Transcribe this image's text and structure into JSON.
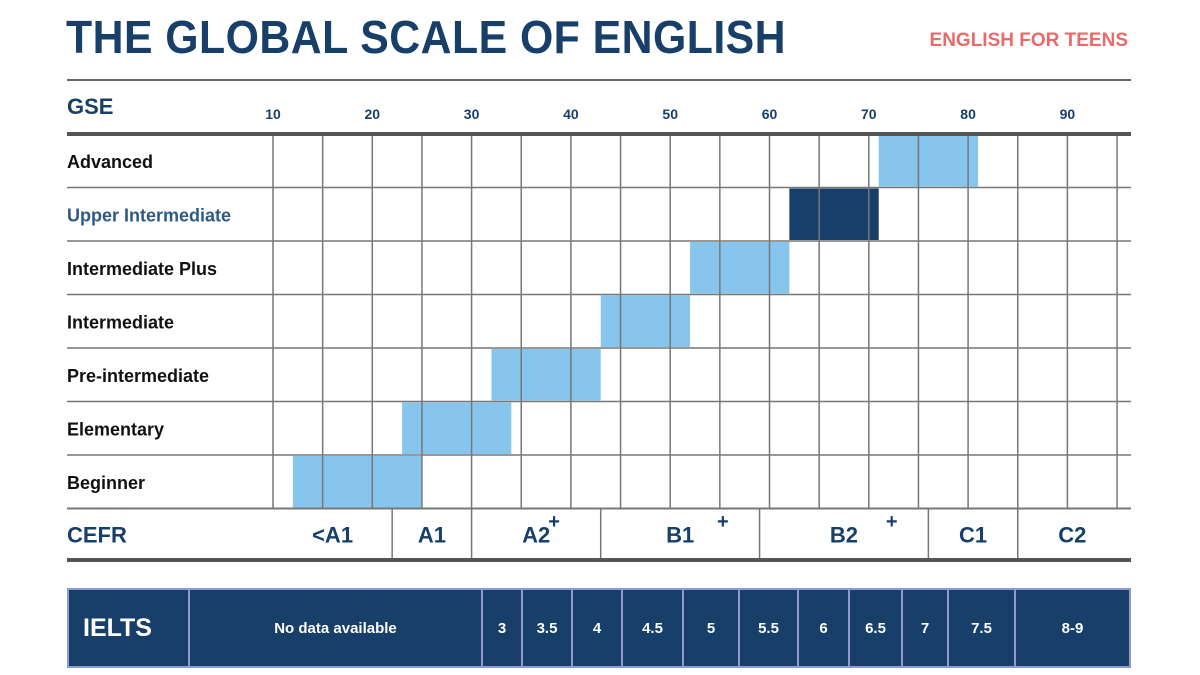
{
  "title": "THE GLOBAL SCALE OF ENGLISH",
  "subtitle": "ENGLISH FOR TEENS",
  "colors": {
    "navy": "#173f69",
    "light_blue": "#88c5ec",
    "accent": "#e96a6a",
    "ielts_border": "#8e9ad8"
  },
  "chart_data": {
    "type": "bar",
    "orientation": "horizontal-range",
    "axis_label": "GSE",
    "x_ticks": [
      10,
      20,
      30,
      40,
      50,
      60,
      70,
      80,
      90
    ],
    "highlight": "Upper Intermediate",
    "categories": [
      "Advanced",
      "Upper Intermediate",
      "Intermediate Plus",
      "Intermediate",
      "Pre-intermediate",
      "Elementary",
      "Beginner"
    ],
    "ranges": [
      [
        71,
        81
      ],
      [
        62,
        71
      ],
      [
        52,
        62
      ],
      [
        43,
        52
      ],
      [
        32,
        43
      ],
      [
        23,
        34
      ],
      [
        12,
        25
      ]
    ]
  },
  "cefr": {
    "label": "CEFR",
    "bands": [
      {
        "label": "<A1",
        "from": 10,
        "to": 22
      },
      {
        "label": "A1",
        "from": 22,
        "to": 30
      },
      {
        "label": "A2",
        "from": 30,
        "to": 43
      },
      {
        "label": "B1",
        "from": 43,
        "to": 59
      },
      {
        "label": "B2",
        "from": 59,
        "to": 76
      },
      {
        "label": "C1",
        "from": 76,
        "to": 85
      },
      {
        "label": "C2",
        "from": 85,
        "to": 96
      }
    ],
    "plus_markers": [
      {
        "symbol": "+",
        "at": 38
      },
      {
        "symbol": "+",
        "at": 55
      },
      {
        "symbol": "+",
        "at": 72
      }
    ]
  },
  "ielts": {
    "label": "IELTS",
    "cells": [
      {
        "text": "No data available",
        "weight": 293
      },
      {
        "text": "3",
        "weight": 40
      },
      {
        "text": "3.5",
        "weight": 50
      },
      {
        "text": "4",
        "weight": 50
      },
      {
        "text": "4.5",
        "weight": 61
      },
      {
        "text": "5",
        "weight": 56
      },
      {
        "text": "5.5",
        "weight": 59
      },
      {
        "text": "6",
        "weight": 51
      },
      {
        "text": "6.5",
        "weight": 53
      },
      {
        "text": "7",
        "weight": 46
      },
      {
        "text": "7.5",
        "weight": 67
      },
      {
        "text": "8-9",
        "weight": 115
      }
    ]
  }
}
